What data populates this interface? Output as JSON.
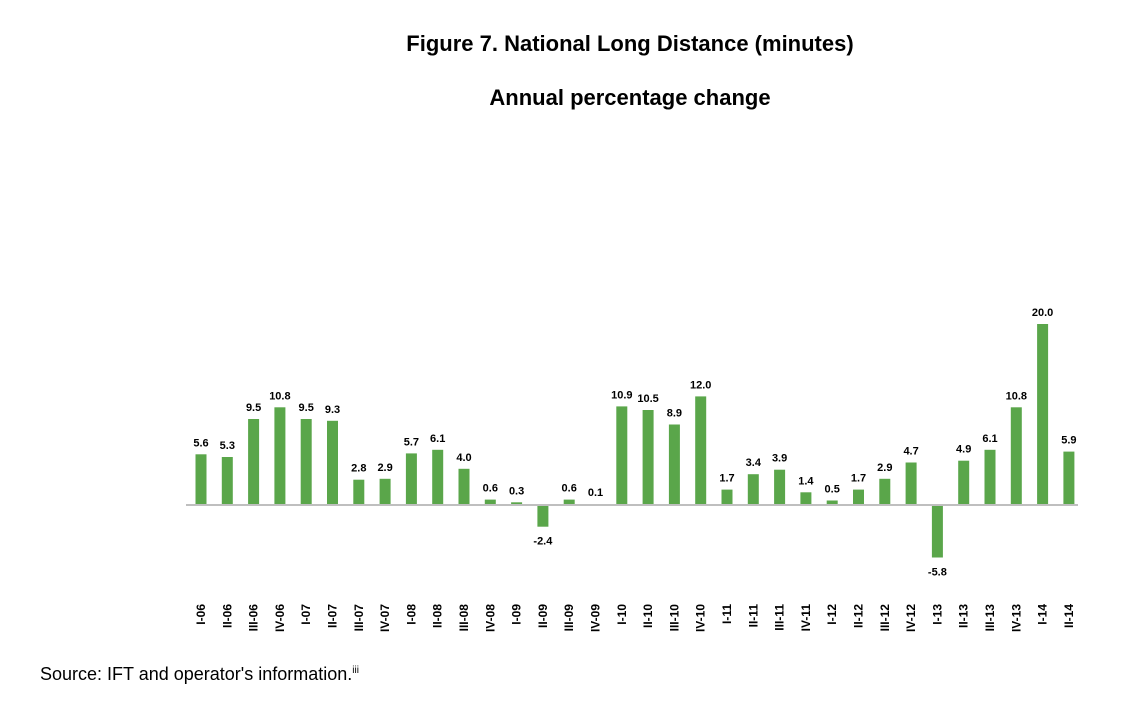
{
  "title": "Figure 7. National Long Distance (minutes)",
  "subtitle": "Annual percentage change",
  "source": {
    "text": "Source: IFT and operator's information.",
    "footnote": "iii"
  },
  "colors": {
    "bar": "#5aa64a",
    "axis": "#bfbfbf"
  },
  "chart_data": {
    "type": "bar",
    "categories": [
      "I-06",
      "II-06",
      "III-06",
      "IV-06",
      "I-07",
      "II-07",
      "III-07",
      "IV-07",
      "I-08",
      "II-08",
      "III-08",
      "IV-08",
      "I-09",
      "II-09",
      "III-09",
      "IV-09",
      "I-10",
      "II-10",
      "III-10",
      "IV-10",
      "I-11",
      "II-11",
      "III-11",
      "IV-11",
      "I-12",
      "II-12",
      "III-12",
      "IV-12",
      "I-13",
      "II-13",
      "III-13",
      "IV-13",
      "I-14",
      "II-14"
    ],
    "values": [
      5.6,
      5.3,
      9.5,
      10.8,
      9.5,
      9.3,
      2.8,
      2.9,
      5.7,
      6.1,
      4.0,
      0.6,
      0.3,
      -2.4,
      0.6,
      0.1,
      10.9,
      10.5,
      8.9,
      12.0,
      1.7,
      3.4,
      3.9,
      1.4,
      0.5,
      1.7,
      2.9,
      4.7,
      -5.8,
      4.9,
      6.1,
      10.8,
      20.0,
      5.9
    ],
    "value_labels": [
      "5.6",
      "5.3",
      "9.5",
      "10.8",
      "9.5",
      "9.3",
      "2.8",
      "2.9",
      "5.7",
      "6.1",
      "4.0",
      "0.6",
      "0.3",
      "-2.4",
      "0.6",
      "0.1",
      "10.9",
      "10.5",
      "8.9",
      "12.0",
      "1.7",
      "3.4",
      "3.9",
      "1.4",
      "0.5",
      "1.7",
      "2.9",
      "4.7",
      "-5.8",
      "4.9",
      "6.1",
      "10.8",
      "20.0",
      "5.9"
    ],
    "xlabel": "",
    "ylabel": "",
    "grid": false,
    "legend": "none"
  }
}
